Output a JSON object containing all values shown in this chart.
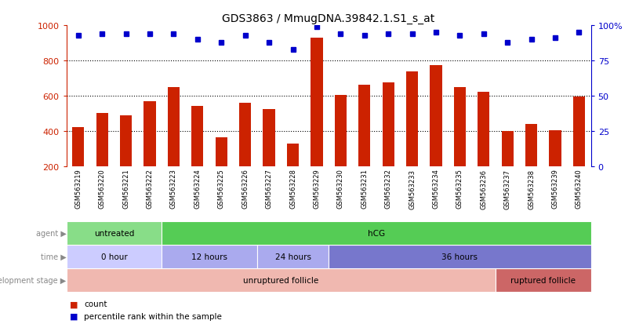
{
  "title": "GDS3863 / MmugDNA.39842.1.S1_s_at",
  "samples": [
    "GSM563219",
    "GSM563220",
    "GSM563221",
    "GSM563222",
    "GSM563223",
    "GSM563224",
    "GSM563225",
    "GSM563226",
    "GSM563227",
    "GSM563228",
    "GSM563229",
    "GSM563230",
    "GSM563231",
    "GSM563232",
    "GSM563233",
    "GSM563234",
    "GSM563235",
    "GSM563236",
    "GSM563237",
    "GSM563238",
    "GSM563239",
    "GSM563240"
  ],
  "counts": [
    420,
    500,
    490,
    570,
    650,
    540,
    365,
    560,
    525,
    330,
    930,
    605,
    660,
    675,
    740,
    775,
    650,
    620,
    400,
    440,
    405,
    595
  ],
  "percentiles": [
    93,
    94,
    94,
    94,
    94,
    90,
    88,
    93,
    88,
    83,
    99,
    94,
    93,
    94,
    94,
    95,
    93,
    94,
    88,
    90,
    91,
    95
  ],
  "bar_color": "#cc2200",
  "dot_color": "#0000cc",
  "ymin": 200,
  "ymax": 1000,
  "y_left_ticks": [
    200,
    400,
    600,
    800,
    1000
  ],
  "y_right_ticks": [
    0,
    25,
    50,
    75,
    100
  ],
  "y_right_tick_labels": [
    "0",
    "25",
    "50",
    "75",
    "100%"
  ],
  "dotted_lines": [
    400,
    600,
    800
  ],
  "agent_groups": [
    {
      "label": "untreated",
      "start": 0,
      "end": 4,
      "color": "#88dd88"
    },
    {
      "label": "hCG",
      "start": 4,
      "end": 22,
      "color": "#55cc55"
    }
  ],
  "time_groups": [
    {
      "label": "0 hour",
      "start": 0,
      "end": 4,
      "color": "#ccccff"
    },
    {
      "label": "12 hours",
      "start": 4,
      "end": 8,
      "color": "#aaaaee"
    },
    {
      "label": "24 hours",
      "start": 8,
      "end": 11,
      "color": "#aaaaee"
    },
    {
      "label": "36 hours",
      "start": 11,
      "end": 22,
      "color": "#7777cc"
    }
  ],
  "dev_groups": [
    {
      "label": "unruptured follicle",
      "start": 0,
      "end": 18,
      "color": "#f0b8b0"
    },
    {
      "label": "ruptured follicle",
      "start": 18,
      "end": 22,
      "color": "#cc6666"
    }
  ],
  "label_color": "#888888",
  "legend_count_color": "#cc2200",
  "legend_pct_color": "#0000cc",
  "bg_color": "#ffffff"
}
